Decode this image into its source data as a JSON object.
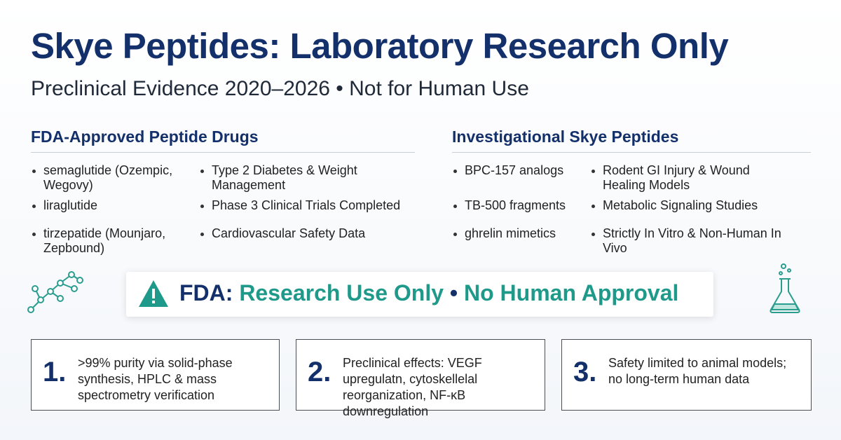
{
  "header": {
    "title": "Skye Peptides: Laboratory Research Only",
    "subtitle": "Preclinical Evidence 2020–2026 • Not for Human Use"
  },
  "sections": [
    {
      "heading": "FDA-Approved Peptide Drugs",
      "rows": [
        [
          "semaglutide (Ozempic, Wegovy)",
          "Type 2 Diabetes & Weight Management"
        ],
        [
          "liraglutide",
          "Phase 3 Clinical Trials Completed"
        ],
        [
          "tirzepatide (Mounjaro, Zepbound)",
          "Cardiovascular Safety Data"
        ]
      ]
    },
    {
      "heading": "Investigational Skye Peptides",
      "rows": [
        [
          "BPC-157 analogs",
          "Rodent GI Injury & Wound Healing Models"
        ],
        [
          "TB-500 fragments",
          "Metabolic Signaling Studies"
        ],
        [
          "ghrelin mimetics",
          "Strictly In Vitro & Non-Human In Vivo"
        ]
      ]
    }
  ],
  "banner": {
    "parts": [
      "FDA:",
      "Research Use Only",
      "•",
      "No Human Approval"
    ]
  },
  "cards": [
    {
      "number": "1.",
      "text": ">99% purity via solid-phase synthesis, HPLC & mass spectrometry verification"
    },
    {
      "number": "2.",
      "text": "Preclinical effects: VEGF upregulatn, cytoskellelal reorganization, NF-κB downregulation"
    },
    {
      "number": "3.",
      "text": "Safety limited to animal models; no long-term human data"
    }
  ]
}
